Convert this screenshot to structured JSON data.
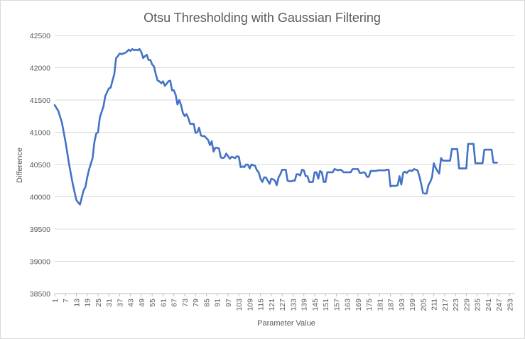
{
  "chart_data": {
    "type": "line",
    "title": "Otsu Thresholding with Gaussian Filtering",
    "xlabel": "Parameter Value",
    "ylabel": "Difference",
    "xlim": [
      1,
      256
    ],
    "ylim": [
      38500,
      42500
    ],
    "y_ticks": [
      38500,
      39000,
      39500,
      40000,
      40500,
      41000,
      41500,
      42000,
      42500
    ],
    "x_tick_labels": [
      1,
      7,
      13,
      19,
      25,
      31,
      37,
      43,
      49,
      55,
      61,
      67,
      73,
      79,
      85,
      91,
      97,
      103,
      109,
      115,
      121,
      127,
      133,
      139,
      145,
      151,
      157,
      163,
      169,
      175,
      181,
      187,
      193,
      199,
      205,
      211,
      217,
      223,
      229,
      235,
      241,
      247,
      253
    ],
    "grid": "horizontal",
    "legend": "none",
    "line_color": "#4472c4",
    "series": [
      {
        "points": [
          [
            1,
            41420
          ],
          [
            3,
            41330
          ],
          [
            5,
            41150
          ],
          [
            7,
            40850
          ],
          [
            9,
            40500
          ],
          [
            11,
            40200
          ],
          [
            13,
            39950
          ],
          [
            14,
            39910
          ],
          [
            15,
            39880
          ],
          [
            17,
            40100
          ],
          [
            18,
            40150
          ],
          [
            19,
            40300
          ],
          [
            20,
            40420
          ],
          [
            22,
            40600
          ],
          [
            23,
            40850
          ],
          [
            24,
            40980
          ],
          [
            25,
            41000
          ],
          [
            26,
            41230
          ],
          [
            28,
            41400
          ],
          [
            29,
            41560
          ],
          [
            31,
            41680
          ],
          [
            32,
            41690
          ],
          [
            33,
            41800
          ],
          [
            34,
            41900
          ],
          [
            35,
            42150
          ],
          [
            36,
            42180
          ],
          [
            37,
            42220
          ],
          [
            38,
            42210
          ],
          [
            39,
            42220
          ],
          [
            40,
            42230
          ],
          [
            41,
            42250
          ],
          [
            42,
            42280
          ],
          [
            43,
            42260
          ],
          [
            44,
            42290
          ],
          [
            45,
            42270
          ],
          [
            46,
            42280
          ],
          [
            47,
            42270
          ],
          [
            48,
            42290
          ],
          [
            49,
            42240
          ],
          [
            50,
            42150
          ],
          [
            51,
            42180
          ],
          [
            52,
            42200
          ],
          [
            53,
            42120
          ],
          [
            54,
            42120
          ],
          [
            55,
            42050
          ],
          [
            56,
            42020
          ],
          [
            57,
            41900
          ],
          [
            58,
            41800
          ],
          [
            59,
            41790
          ],
          [
            60,
            41760
          ],
          [
            61,
            41790
          ],
          [
            62,
            41720
          ],
          [
            63,
            41750
          ],
          [
            64,
            41790
          ],
          [
            65,
            41800
          ],
          [
            66,
            41650
          ],
          [
            67,
            41650
          ],
          [
            68,
            41580
          ],
          [
            69,
            41430
          ],
          [
            70,
            41500
          ],
          [
            71,
            41420
          ],
          [
            72,
            41300
          ],
          [
            73,
            41250
          ],
          [
            74,
            41280
          ],
          [
            75,
            41220
          ],
          [
            76,
            41130
          ],
          [
            77,
            41130
          ],
          [
            78,
            41130
          ],
          [
            79,
            40990
          ],
          [
            80,
            41000
          ],
          [
            81,
            41070
          ],
          [
            82,
            40950
          ],
          [
            83,
            40940
          ],
          [
            84,
            40940
          ],
          [
            85,
            40910
          ],
          [
            86,
            40880
          ],
          [
            87,
            40800
          ],
          [
            88,
            40860
          ],
          [
            89,
            40700
          ],
          [
            90,
            40760
          ],
          [
            91,
            40760
          ],
          [
            92,
            40750
          ],
          [
            93,
            40610
          ],
          [
            94,
            40600
          ],
          [
            95,
            40610
          ],
          [
            96,
            40670
          ],
          [
            97,
            40630
          ],
          [
            98,
            40590
          ],
          [
            99,
            40620
          ],
          [
            100,
            40610
          ],
          [
            101,
            40600
          ],
          [
            102,
            40630
          ],
          [
            103,
            40620
          ],
          [
            104,
            40460
          ],
          [
            105,
            40470
          ],
          [
            106,
            40460
          ],
          [
            107,
            40500
          ],
          [
            108,
            40500
          ],
          [
            109,
            40440
          ],
          [
            110,
            40500
          ],
          [
            111,
            40490
          ],
          [
            112,
            40480
          ],
          [
            113,
            40410
          ],
          [
            114,
            40380
          ],
          [
            115,
            40280
          ],
          [
            116,
            40230
          ],
          [
            117,
            40300
          ],
          [
            118,
            40300
          ],
          [
            119,
            40250
          ],
          [
            120,
            40200
          ],
          [
            121,
            40280
          ],
          [
            122,
            40270
          ],
          [
            123,
            40250
          ],
          [
            124,
            40180
          ],
          [
            125,
            40300
          ],
          [
            126,
            40350
          ],
          [
            127,
            40420
          ],
          [
            128,
            40420
          ],
          [
            129,
            40420
          ],
          [
            130,
            40250
          ],
          [
            131,
            40240
          ],
          [
            132,
            40240
          ],
          [
            133,
            40250
          ],
          [
            134,
            40250
          ],
          [
            135,
            40350
          ],
          [
            136,
            40350
          ],
          [
            137,
            40330
          ],
          [
            138,
            40420
          ],
          [
            139,
            40410
          ],
          [
            140,
            40320
          ],
          [
            141,
            40320
          ],
          [
            142,
            40230
          ],
          [
            143,
            40230
          ],
          [
            144,
            40230
          ],
          [
            145,
            40380
          ],
          [
            146,
            40380
          ],
          [
            147,
            40280
          ],
          [
            148,
            40400
          ],
          [
            149,
            40380
          ],
          [
            150,
            40230
          ],
          [
            151,
            40230
          ],
          [
            152,
            40380
          ],
          [
            153,
            40380
          ],
          [
            154,
            40380
          ],
          [
            155,
            40380
          ],
          [
            156,
            40430
          ],
          [
            157,
            40420
          ],
          [
            158,
            40410
          ],
          [
            159,
            40420
          ],
          [
            160,
            40410
          ],
          [
            161,
            40380
          ],
          [
            162,
            40380
          ],
          [
            163,
            40380
          ],
          [
            164,
            40380
          ],
          [
            165,
            40380
          ],
          [
            166,
            40430
          ],
          [
            167,
            40430
          ],
          [
            168,
            40430
          ],
          [
            169,
            40430
          ],
          [
            170,
            40370
          ],
          [
            171,
            40370
          ],
          [
            172,
            40380
          ],
          [
            173,
            40370
          ],
          [
            174,
            40310
          ],
          [
            175,
            40310
          ],
          [
            176,
            40400
          ],
          [
            177,
            40400
          ],
          [
            178,
            40400
          ],
          [
            179,
            40400
          ],
          [
            180,
            40410
          ],
          [
            181,
            40410
          ],
          [
            182,
            40410
          ],
          [
            183,
            40410
          ],
          [
            184,
            40410
          ],
          [
            185,
            40420
          ],
          [
            186,
            40420
          ],
          [
            187,
            40160
          ],
          [
            188,
            40170
          ],
          [
            189,
            40170
          ],
          [
            190,
            40170
          ],
          [
            191,
            40180
          ],
          [
            192,
            40320
          ],
          [
            193,
            40190
          ],
          [
            194,
            40370
          ],
          [
            195,
            40390
          ],
          [
            196,
            40370
          ],
          [
            197,
            40400
          ],
          [
            198,
            40410
          ],
          [
            199,
            40400
          ],
          [
            200,
            40430
          ],
          [
            201,
            40420
          ],
          [
            202,
            40410
          ],
          [
            203,
            40320
          ],
          [
            204,
            40200
          ],
          [
            205,
            40060
          ],
          [
            206,
            40050
          ],
          [
            207,
            40050
          ],
          [
            208,
            40180
          ],
          [
            209,
            40230
          ],
          [
            210,
            40300
          ],
          [
            211,
            40520
          ],
          [
            212,
            40450
          ],
          [
            213,
            40400
          ],
          [
            214,
            40360
          ],
          [
            215,
            40600
          ],
          [
            216,
            40560
          ],
          [
            217,
            40560
          ],
          [
            218,
            40560
          ],
          [
            219,
            40560
          ],
          [
            220,
            40560
          ],
          [
            221,
            40740
          ],
          [
            222,
            40740
          ],
          [
            223,
            40740
          ],
          [
            224,
            40740
          ],
          [
            225,
            40440
          ],
          [
            226,
            40440
          ],
          [
            227,
            40440
          ],
          [
            228,
            40440
          ],
          [
            229,
            40440
          ],
          [
            230,
            40820
          ],
          [
            231,
            40820
          ],
          [
            232,
            40820
          ],
          [
            233,
            40820
          ],
          [
            234,
            40520
          ],
          [
            235,
            40520
          ],
          [
            236,
            40520
          ],
          [
            237,
            40520
          ],
          [
            238,
            40520
          ],
          [
            239,
            40730
          ],
          [
            240,
            40730
          ],
          [
            241,
            40730
          ],
          [
            242,
            40730
          ],
          [
            243,
            40730
          ],
          [
            244,
            40530
          ],
          [
            245,
            40530
          ],
          [
            246,
            40530
          ]
        ]
      }
    ]
  }
}
